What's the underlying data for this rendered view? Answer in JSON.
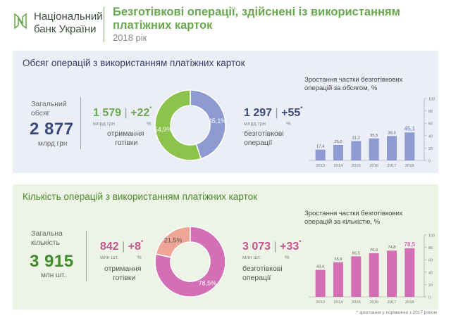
{
  "header": {
    "logo_line1": "Національний",
    "logo_line2": "банк України",
    "title": "Безготівкові операції, здійснені із використанням платіжних карток",
    "subtitle": "2018 рік"
  },
  "colors": {
    "green": "#8cc34a",
    "blue": "#8e9bd2",
    "pink": "#d36fb4",
    "salmon": "#f0a697",
    "dark_blue": "#3a4a7a",
    "dark_green": "#3f8a2a"
  },
  "volume": {
    "title": "Обсяг операцій з використанням платіжних карток",
    "total_label1": "Загальний",
    "total_label2": "обсяг",
    "total_value": "2 877",
    "total_unit": "млрд грн",
    "cash_value": "1 579",
    "cash_change": "+22",
    "cash_star": "*",
    "cash_unit": "млрд грн",
    "cash_pct_unit": "%",
    "cash_label1": "отримання",
    "cash_label2": "готівки",
    "cashless_value": "1 297",
    "cashless_change": "+55",
    "cashless_star": "*",
    "cashless_unit": "млрд грн",
    "cashless_pct_unit": "%",
    "cashless_label1": "безготівкові",
    "cashless_label2": "операції",
    "donut_cashless_label": "45,1%",
    "donut_cash_label": "54,9%",
    "chart_title1": "Зростання частки безготівкових",
    "chart_title2": "операцій за обсягом, %"
  },
  "count": {
    "title": "Кількість операцій з використанням платіжних карток",
    "total_label1": "Загальна",
    "total_label2": "кількість",
    "total_value": "3 915",
    "total_unit": "млн шт.",
    "cash_value": "842",
    "cash_change": "+8",
    "cash_star": "*",
    "cash_unit": "млн шт.",
    "cash_pct_unit": "%",
    "cash_label1": "отримання",
    "cash_label2": "готівки",
    "cashless_value": "3 073",
    "cashless_change": "+33",
    "cashless_star": "*",
    "cashless_unit": "млн шт.",
    "cashless_pct_unit": "%",
    "cashless_label1": "безготівкові",
    "cashless_label2": "операції",
    "donut_cash_label": "21,5%",
    "donut_cashless_label": "78,5%",
    "chart_title1": "Зростання частки безготівкових",
    "chart_title2": "операцій за кількістю, %"
  },
  "footnote": "* зростання у порівнянні з 2017 роком",
  "chart_data": [
    {
      "type": "pie",
      "categories": [
        "безготівкові операції",
        "отримання готівки"
      ],
      "values": [
        45.1,
        54.9
      ],
      "colors": [
        "#8e9bd2",
        "#8cc34a"
      ]
    },
    {
      "type": "bar",
      "title": "Зростання частки безготівкових операцій за обсягом, %",
      "categories": [
        "2013",
        "2014",
        "2015",
        "2016",
        "2017",
        "2018"
      ],
      "values": [
        17.4,
        25.0,
        31.2,
        35.5,
        39.3,
        45.1
      ],
      "value_labels": [
        "17,4",
        "25,0",
        "31,2",
        "35,5",
        "39,3",
        "45,1"
      ],
      "ylim": [
        0,
        100
      ],
      "yticks": [
        0,
        20,
        40,
        60,
        80,
        100
      ],
      "color": "#8e9bd2",
      "grid": false
    },
    {
      "type": "pie",
      "categories": [
        "отримання готівки",
        "безготівкові операції"
      ],
      "values": [
        21.5,
        78.5
      ],
      "colors": [
        "#f0a697",
        "#d36fb4"
      ]
    },
    {
      "type": "bar",
      "title": "Зростання частки безготівкових операцій за кількістю, %",
      "categories": [
        "2013",
        "2014",
        "2015",
        "2016",
        "2017",
        "2018"
      ],
      "values": [
        43.6,
        55.9,
        65.5,
        70.6,
        74.8,
        78.5
      ],
      "value_labels": [
        "43,6",
        "55,9",
        "65,5",
        "70,6",
        "74,8",
        "78,5"
      ],
      "ylim": [
        0,
        100
      ],
      "yticks": [
        0,
        20,
        40,
        60,
        80,
        100
      ],
      "color": "#d36fb4",
      "grid": false
    }
  ]
}
